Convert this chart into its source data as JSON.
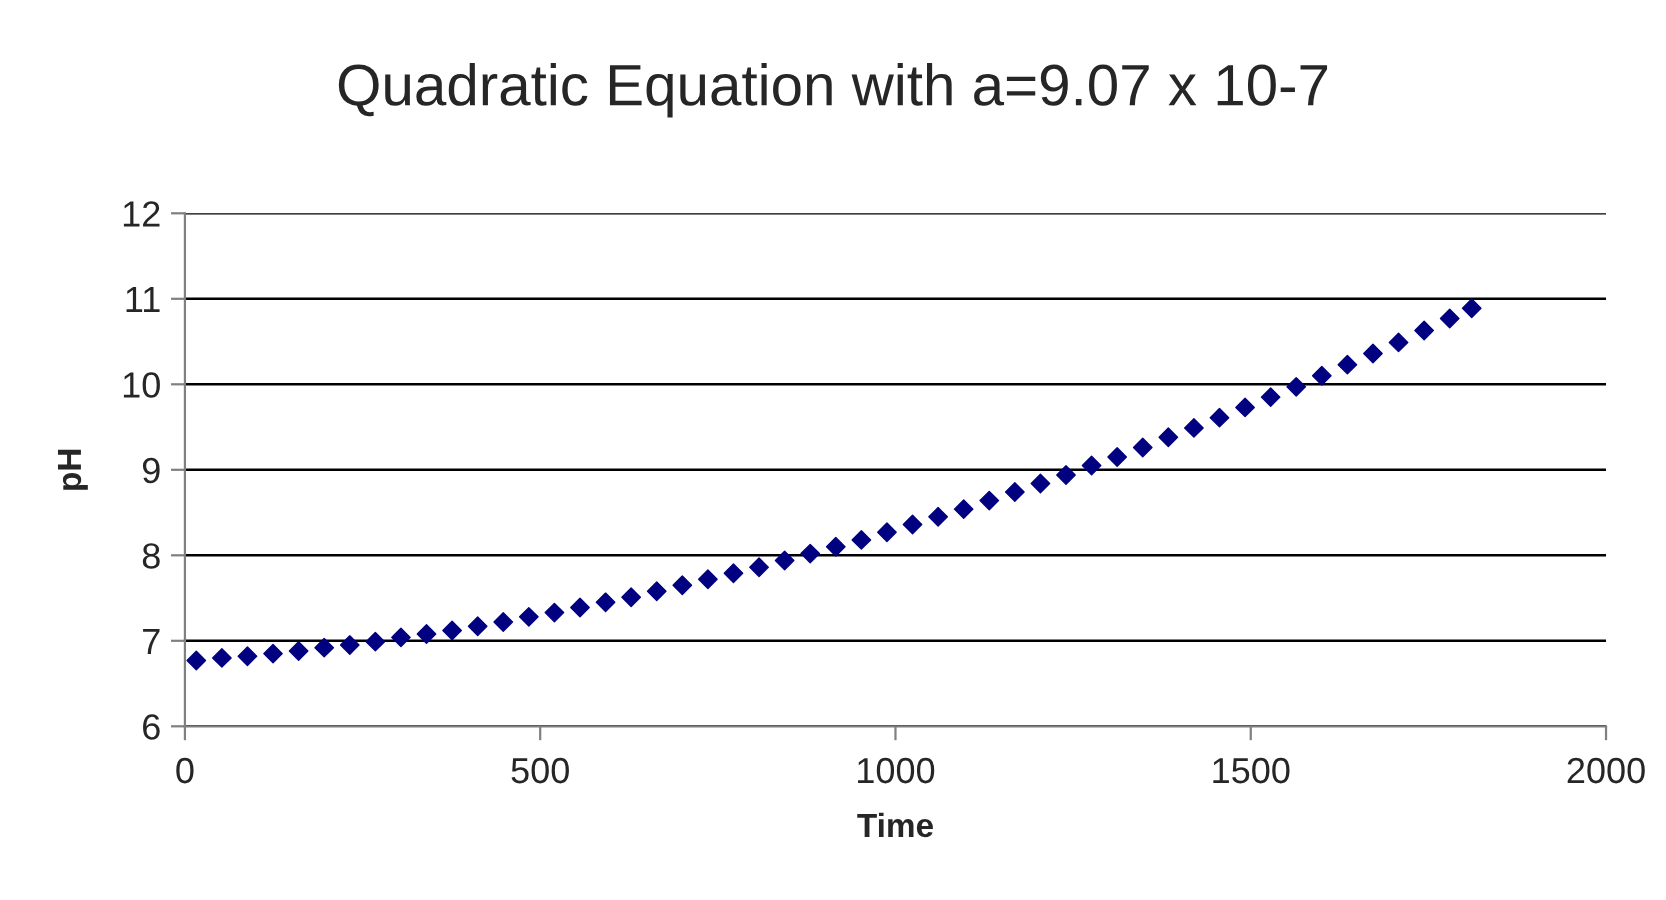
{
  "chart_data": {
    "type": "scatter",
    "title": "Quadratic Equation with a=9.07 x 10-7",
    "xlabel": "Time",
    "ylabel": "pH",
    "x": [
      16,
      52,
      88,
      124,
      160,
      196,
      232,
      268,
      304,
      340,
      376,
      412,
      448,
      484,
      520,
      556,
      592,
      628,
      664,
      700,
      736,
      772,
      808,
      844,
      880,
      916,
      952,
      988,
      1024,
      1060,
      1096,
      1132,
      1168,
      1204,
      1240,
      1276,
      1312,
      1348,
      1384,
      1420,
      1456,
      1492,
      1528,
      1564,
      1600,
      1636,
      1672,
      1708,
      1744,
      1780,
      1811
    ],
    "series": [
      {
        "color": "#000080",
        "values": [
          6.77,
          6.8,
          6.82,
          6.85,
          6.88,
          6.92,
          6.95,
          6.99,
          7.04,
          7.08,
          7.12,
          7.17,
          7.22,
          7.28,
          7.33,
          7.39,
          7.45,
          7.51,
          7.58,
          7.65,
          7.72,
          7.79,
          7.86,
          7.94,
          8.02,
          8.1,
          8.18,
          8.27,
          8.36,
          8.45,
          8.54,
          8.64,
          8.74,
          8.84,
          8.94,
          9.05,
          9.15,
          9.26,
          9.38,
          9.49,
          9.61,
          9.73,
          9.85,
          9.97,
          10.1,
          10.23,
          10.36,
          10.49,
          10.63,
          10.77,
          10.89
        ]
      }
    ],
    "xlim": [
      0,
      2000
    ],
    "xticks": [
      0,
      500,
      1000,
      1500,
      2000
    ],
    "ylim": [
      6,
      12
    ],
    "yticks": [
      6,
      7,
      8,
      9,
      10,
      11,
      12
    ],
    "grid": "y",
    "legend": false,
    "marker": "diamond"
  }
}
